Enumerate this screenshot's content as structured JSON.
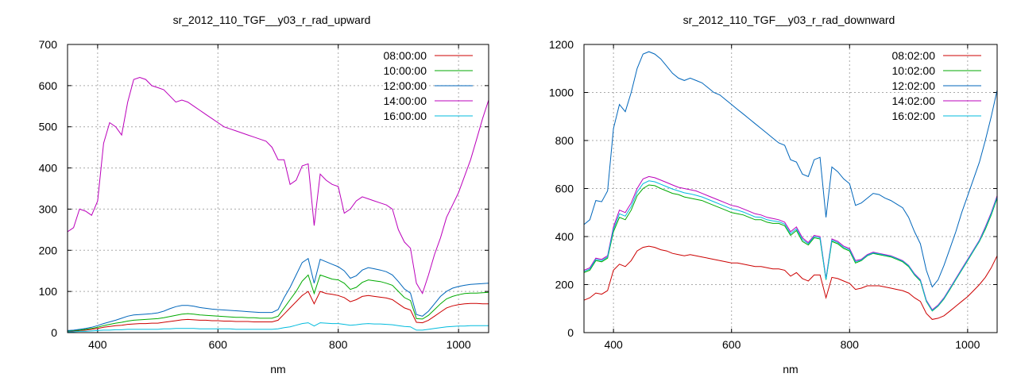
{
  "chart_data": [
    {
      "type": "line",
      "title": "sr_2012_110_TGF__y03_r_rad_upward",
      "xlabel": "nm",
      "ylabel": "",
      "xlim": [
        350,
        1050
      ],
      "ylim": [
        0,
        700
      ],
      "xticks": [
        400,
        600,
        800,
        1000
      ],
      "yticks": [
        0,
        100,
        200,
        300,
        400,
        500,
        600,
        700
      ],
      "grid": true,
      "legend_position": "top-right",
      "x": [
        350,
        360,
        370,
        380,
        390,
        400,
        410,
        420,
        430,
        440,
        450,
        460,
        470,
        480,
        490,
        500,
        510,
        520,
        530,
        540,
        550,
        560,
        570,
        580,
        590,
        600,
        610,
        620,
        630,
        640,
        650,
        660,
        670,
        680,
        690,
        700,
        710,
        720,
        730,
        740,
        750,
        760,
        770,
        780,
        790,
        800,
        810,
        820,
        830,
        840,
        850,
        860,
        870,
        880,
        890,
        900,
        910,
        920,
        930,
        940,
        950,
        960,
        970,
        980,
        990,
        1000,
        1010,
        1020,
        1030,
        1040,
        1050
      ],
      "series": [
        {
          "name": "08:00:00",
          "color": "#cc0000",
          "values": [
            3,
            4,
            5,
            6,
            8,
            10,
            13,
            15,
            17,
            18,
            20,
            21,
            22,
            22,
            23,
            23,
            25,
            27,
            29,
            31,
            32,
            31,
            30,
            30,
            29,
            29,
            28,
            28,
            27,
            27,
            27,
            26,
            26,
            26,
            26,
            30,
            45,
            60,
            75,
            90,
            100,
            70,
            100,
            95,
            93,
            90,
            85,
            75,
            80,
            88,
            90,
            88,
            86,
            84,
            80,
            70,
            60,
            55,
            25,
            24,
            30,
            40,
            50,
            60,
            65,
            68,
            70,
            71,
            71,
            70,
            70
          ]
        },
        {
          "name": "10:00:00",
          "color": "#00aa00",
          "values": [
            4,
            5,
            6,
            8,
            10,
            13,
            17,
            20,
            23,
            25,
            28,
            30,
            31,
            32,
            33,
            34,
            36,
            39,
            42,
            45,
            46,
            45,
            43,
            42,
            41,
            40,
            39,
            38,
            37,
            37,
            36,
            36,
            35,
            35,
            35,
            40,
            60,
            80,
            100,
            125,
            140,
            95,
            140,
            135,
            130,
            128,
            120,
            105,
            110,
            122,
            128,
            126,
            124,
            120,
            115,
            100,
            85,
            78,
            34,
            33,
            42,
            56,
            70,
            82,
            88,
            92,
            95,
            96,
            96,
            97,
            98
          ]
        },
        {
          "name": "12:00:00",
          "color": "#0066bb",
          "values": [
            5,
            6,
            8,
            10,
            13,
            17,
            22,
            26,
            30,
            35,
            40,
            43,
            44,
            45,
            46,
            48,
            52,
            58,
            63,
            66,
            66,
            64,
            61,
            59,
            57,
            56,
            55,
            54,
            53,
            52,
            51,
            50,
            49,
            49,
            49,
            56,
            85,
            110,
            140,
            170,
            180,
            120,
            178,
            172,
            166,
            160,
            150,
            132,
            138,
            152,
            158,
            155,
            152,
            148,
            140,
            124,
            106,
            96,
            44,
            40,
            52,
            70,
            88,
            100,
            108,
            112,
            115,
            117,
            118,
            119,
            120
          ]
        },
        {
          "name": "14:00:00",
          "color": "#bb00bb",
          "values": [
            245,
            255,
            300,
            295,
            285,
            320,
            460,
            510,
            500,
            480,
            560,
            615,
            620,
            615,
            600,
            595,
            590,
            575,
            560,
            565,
            560,
            550,
            540,
            530,
            520,
            510,
            500,
            495,
            490,
            485,
            480,
            475,
            470,
            465,
            450,
            420,
            420,
            360,
            370,
            405,
            410,
            260,
            385,
            370,
            360,
            355,
            290,
            300,
            320,
            330,
            325,
            320,
            315,
            310,
            300,
            250,
            220,
            205,
            120,
            95,
            140,
            190,
            230,
            280,
            310,
            340,
            380,
            420,
            470,
            520,
            565
          ]
        },
        {
          "name": "16:00:00",
          "color": "#00bbdd",
          "values": [
            2,
            2,
            3,
            3,
            4,
            5,
            6,
            6,
            7,
            7,
            8,
            8,
            8,
            8,
            8,
            8,
            9,
            9,
            10,
            10,
            10,
            10,
            9,
            9,
            9,
            9,
            9,
            9,
            8,
            8,
            8,
            8,
            8,
            8,
            8,
            9,
            12,
            14,
            18,
            22,
            24,
            16,
            24,
            23,
            22,
            22,
            20,
            18,
            19,
            21,
            22,
            21,
            21,
            20,
            19,
            17,
            15,
            14,
            6,
            6,
            8,
            10,
            12,
            14,
            15,
            16,
            16,
            17,
            17,
            17,
            17
          ]
        }
      ]
    },
    {
      "type": "line",
      "title": "sr_2012_110_TGF__y03_r_rad_downward",
      "xlabel": "nm",
      "ylabel": "",
      "xlim": [
        350,
        1050
      ],
      "ylim": [
        0,
        1200
      ],
      "xticks": [
        400,
        600,
        800,
        1000
      ],
      "yticks": [
        0,
        200,
        400,
        600,
        800,
        1000,
        1200
      ],
      "grid": true,
      "legend_position": "top-right",
      "x": [
        350,
        360,
        370,
        380,
        390,
        400,
        410,
        420,
        430,
        440,
        450,
        460,
        470,
        480,
        490,
        500,
        510,
        520,
        530,
        540,
        550,
        560,
        570,
        580,
        590,
        600,
        610,
        620,
        630,
        640,
        650,
        660,
        670,
        680,
        690,
        700,
        710,
        720,
        730,
        740,
        750,
        760,
        770,
        780,
        790,
        800,
        810,
        820,
        830,
        840,
        850,
        860,
        870,
        880,
        890,
        900,
        910,
        920,
        930,
        940,
        950,
        960,
        970,
        980,
        990,
        1000,
        1010,
        1020,
        1030,
        1040,
        1050
      ],
      "series": [
        {
          "name": "08:02:00",
          "color": "#cc0000",
          "values": [
            135,
            145,
            165,
            160,
            175,
            260,
            285,
            275,
            300,
            340,
            355,
            360,
            355,
            345,
            340,
            330,
            325,
            320,
            325,
            320,
            315,
            310,
            305,
            300,
            295,
            290,
            290,
            285,
            280,
            275,
            275,
            270,
            265,
            265,
            260,
            235,
            250,
            225,
            215,
            240,
            240,
            145,
            230,
            225,
            215,
            205,
            180,
            185,
            195,
            195,
            195,
            190,
            185,
            180,
            175,
            165,
            145,
            130,
            80,
            55,
            60,
            70,
            90,
            110,
            130,
            150,
            175,
            200,
            230,
            270,
            320
          ]
        },
        {
          "name": "10:02:00",
          "color": "#00aa00",
          "values": [
            250,
            260,
            300,
            295,
            310,
            420,
            480,
            470,
            510,
            570,
            600,
            615,
            612,
            600,
            590,
            580,
            575,
            565,
            560,
            555,
            550,
            540,
            530,
            520,
            510,
            500,
            495,
            490,
            480,
            470,
            470,
            460,
            455,
            455,
            445,
            405,
            425,
            380,
            365,
            395,
            390,
            220,
            380,
            370,
            350,
            340,
            290,
            300,
            320,
            330,
            325,
            320,
            315,
            305,
            295,
            275,
            240,
            215,
            130,
            90,
            110,
            140,
            180,
            220,
            260,
            300,
            340,
            380,
            430,
            490,
            560
          ]
        },
        {
          "name": "12:02:00",
          "color": "#0066bb",
          "values": [
            450,
            470,
            550,
            545,
            590,
            850,
            950,
            920,
            1000,
            1100,
            1160,
            1170,
            1160,
            1140,
            1110,
            1080,
            1060,
            1050,
            1060,
            1050,
            1040,
            1020,
            1000,
            990,
            970,
            950,
            930,
            910,
            890,
            870,
            850,
            830,
            810,
            790,
            780,
            720,
            710,
            660,
            650,
            720,
            730,
            480,
            690,
            670,
            640,
            620,
            530,
            540,
            560,
            580,
            575,
            560,
            550,
            535,
            520,
            480,
            420,
            370,
            260,
            190,
            220,
            280,
            350,
            420,
            500,
            570,
            640,
            710,
            800,
            900,
            1010
          ]
        },
        {
          "name": "14:02:00",
          "color": "#bb00bb",
          "values": [
            260,
            270,
            310,
            305,
            320,
            440,
            510,
            500,
            540,
            600,
            640,
            650,
            645,
            635,
            625,
            615,
            605,
            600,
            595,
            590,
            580,
            570,
            560,
            550,
            540,
            530,
            525,
            515,
            505,
            495,
            490,
            480,
            475,
            470,
            460,
            420,
            440,
            395,
            375,
            405,
            400,
            225,
            390,
            380,
            360,
            350,
            300,
            305,
            325,
            335,
            330,
            325,
            320,
            310,
            300,
            280,
            245,
            220,
            135,
            95,
            115,
            145,
            185,
            225,
            265,
            305,
            345,
            385,
            440,
            500,
            570
          ]
        },
        {
          "name": "16:02:00",
          "color": "#00bbdd",
          "values": [
            255,
            265,
            305,
            300,
            315,
            430,
            495,
            485,
            525,
            585,
            620,
            632,
            628,
            618,
            608,
            598,
            590,
            582,
            578,
            572,
            565,
            555,
            545,
            535,
            525,
            515,
            510,
            502,
            492,
            482,
            480,
            470,
            465,
            462,
            452,
            412,
            432,
            388,
            370,
            400,
            395,
            222,
            385,
            375,
            355,
            345,
            295,
            302,
            322,
            332,
            328,
            322,
            318,
            308,
            298,
            278,
            242,
            218,
            132,
            92,
            112,
            142,
            182,
            222,
            262,
            302,
            342,
            382,
            435,
            495,
            565
          ]
        }
      ]
    }
  ]
}
